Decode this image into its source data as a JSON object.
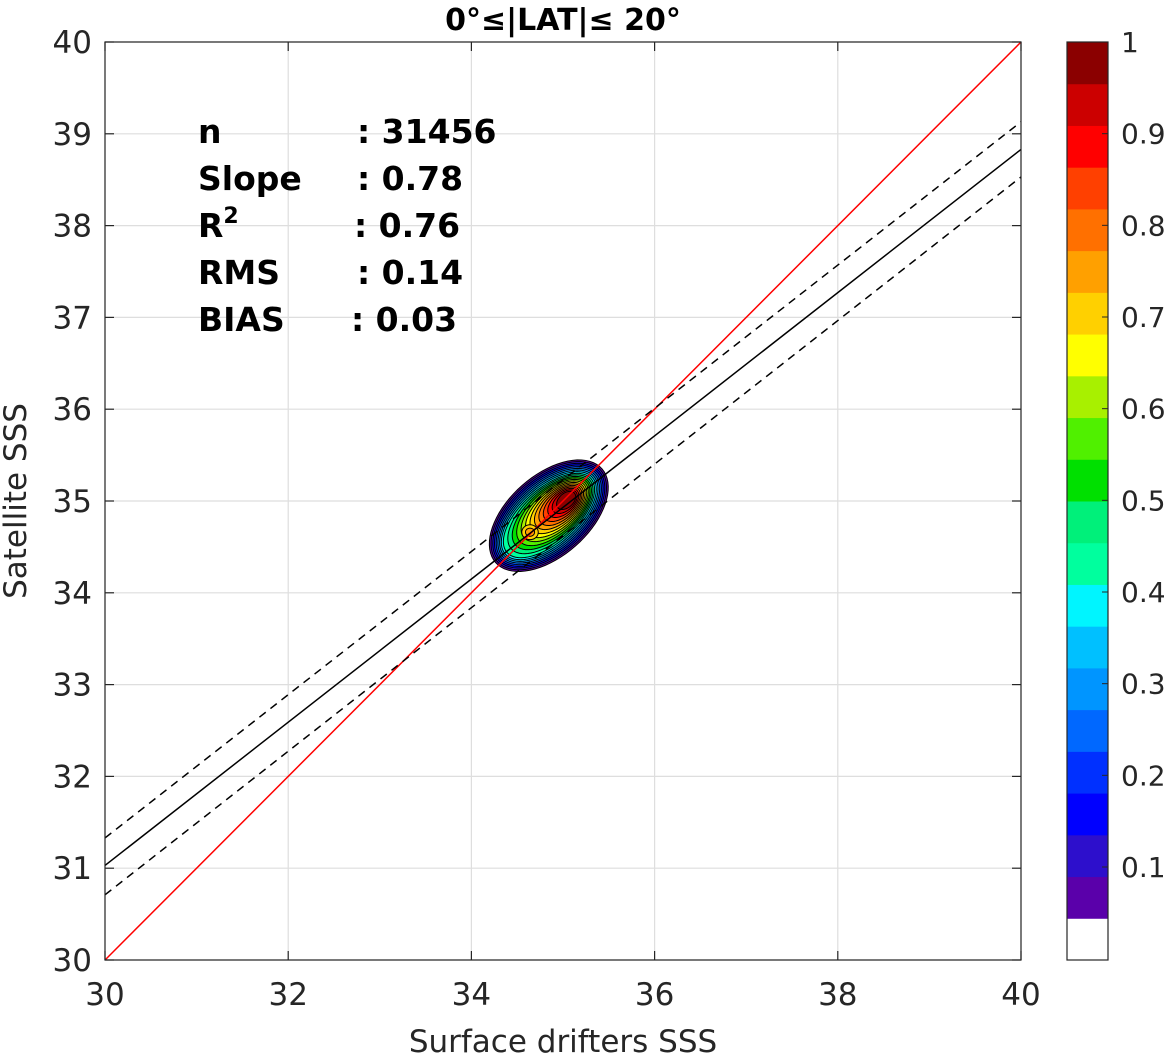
{
  "chart_data": {
    "type": "contour",
    "title": "0°≤|LAT|≤ 20°",
    "xlabel": "Surface drifters SSS",
    "ylabel": "Satellite SSS",
    "xlim": [
      30,
      40
    ],
    "ylim": [
      30,
      40
    ],
    "x_ticks": [
      "30",
      "32",
      "34",
      "36",
      "38",
      "40"
    ],
    "y_ticks": [
      "30",
      "31",
      "32",
      "33",
      "34",
      "35",
      "36",
      "37",
      "38",
      "39",
      "40"
    ],
    "grid": true,
    "stats": [
      {
        "label": "n",
        "value": ": 31456"
      },
      {
        "label": "Slope",
        "value": ": 0.78"
      },
      {
        "label": "R",
        "sup": "2",
        "value": ": 0.76"
      },
      {
        "label": "RMS",
        "value": ": 0.14"
      },
      {
        "label": "BIAS",
        "value": ": 0.03"
      }
    ],
    "lines": [
      {
        "name": "one-to-one",
        "color": "#ff0000",
        "style": "solid",
        "points": [
          [
            30,
            30
          ],
          [
            40,
            40
          ]
        ]
      },
      {
        "name": "regression",
        "color": "#000000",
        "style": "solid",
        "points": [
          [
            30,
            31.03
          ],
          [
            40,
            38.83
          ]
        ]
      },
      {
        "name": "upper-bound",
        "color": "#000000",
        "style": "dashed",
        "points": [
          [
            30,
            31.33
          ],
          [
            40,
            39.13
          ]
        ]
      },
      {
        "name": "lower-bound",
        "color": "#000000",
        "style": "dashed",
        "points": [
          [
            30,
            30.71
          ],
          [
            40,
            38.53
          ]
        ]
      }
    ],
    "density_peaks": [
      {
        "x": 35.05,
        "y": 35.02,
        "value": 1.0
      },
      {
        "x": 34.64,
        "y": 34.66,
        "value": 0.65
      }
    ],
    "colorbar": {
      "range": [
        0,
        1
      ],
      "tick_labels": [
        "0.1",
        "0.2",
        "0.3",
        "0.4",
        "0.5",
        "0.6",
        "0.7",
        "0.8",
        "0.9",
        "1"
      ],
      "tick_values": [
        0.1,
        0.2,
        0.3,
        0.4,
        0.5,
        0.6,
        0.7,
        0.8,
        0.9,
        1.0
      ],
      "levels": 20,
      "colors": [
        "#ffffff",
        "#5a00aa",
        "#2d0fcc",
        "#0000ff",
        "#0030ff",
        "#0068ff",
        "#0095ff",
        "#00c0ff",
        "#00f5ff",
        "#00ff9e",
        "#00f07a",
        "#00e000",
        "#50f000",
        "#a8f000",
        "#ffff00",
        "#ffd000",
        "#ffa000",
        "#ff7000",
        "#ff4000",
        "#ff0000",
        "#cc0000",
        "#8b0000"
      ]
    }
  }
}
